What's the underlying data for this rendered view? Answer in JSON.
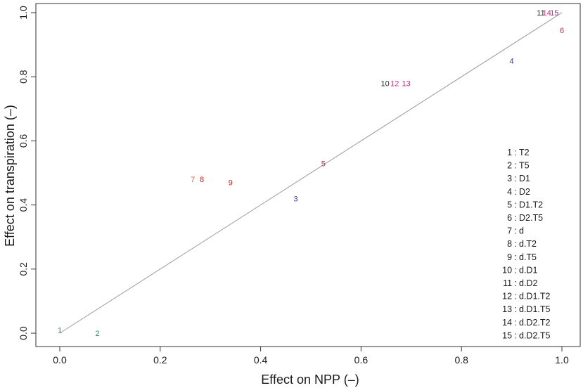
{
  "chart_data": {
    "type": "scatter",
    "title": "",
    "xlabel": "Effect on NPP (–)",
    "ylabel": "Effect on transpiration (–)",
    "xlim": [
      0.0,
      1.0
    ],
    "ylim": [
      0.0,
      1.0
    ],
    "x_ticks": [
      "0.0",
      "0.2",
      "0.4",
      "0.6",
      "0.8",
      "1.0"
    ],
    "y_ticks": [
      "0.0",
      "0.2",
      "0.4",
      "0.6",
      "0.8",
      "1.0"
    ],
    "grid": false,
    "reference_line": {
      "x": [
        0.0,
        1.0
      ],
      "y": [
        0.0,
        1.0
      ],
      "color": "#999999"
    },
    "points": [
      {
        "label": "1",
        "x": 0.0,
        "y": 0.01,
        "color": "#2e8b57"
      },
      {
        "label": "2",
        "x": 0.075,
        "y": 0.0,
        "color": "#2e8b57"
      },
      {
        "label": "3",
        "x": 0.47,
        "y": 0.42,
        "color": "#3b3b9c"
      },
      {
        "label": "4",
        "x": 0.9,
        "y": 0.85,
        "color": "#3b3b9c"
      },
      {
        "label": "5",
        "x": 0.525,
        "y": 0.53,
        "color": "#b03a3a"
      },
      {
        "label": "6",
        "x": 1.0,
        "y": 0.945,
        "color": "#b03a3a"
      },
      {
        "label": "7",
        "x": 0.265,
        "y": 0.48,
        "color": "#c8703a"
      },
      {
        "label": "8",
        "x": 0.283,
        "y": 0.48,
        "color": "#d02020"
      },
      {
        "label": "9",
        "x": 0.34,
        "y": 0.47,
        "color": "#d02020"
      },
      {
        "label": "10",
        "x": 0.648,
        "y": 0.78,
        "color": "#222222"
      },
      {
        "label": "11",
        "x": 0.958,
        "y": 1.0,
        "color": "#222222"
      },
      {
        "label": "12",
        "x": 0.667,
        "y": 0.78,
        "color": "#c2378a"
      },
      {
        "label": "13",
        "x": 0.69,
        "y": 0.78,
        "color": "#a0307c"
      },
      {
        "label": "14",
        "x": 0.97,
        "y": 1.0,
        "color": "#c2378a"
      },
      {
        "label": "15",
        "x": 0.985,
        "y": 1.0,
        "color": "#a0307c"
      }
    ],
    "legend": {
      "placement": "bottom-right",
      "entries": [
        {
          "num": "1",
          "text": "T2"
        },
        {
          "num": "2",
          "text": "T5"
        },
        {
          "num": "3",
          "text": "D1"
        },
        {
          "num": "4",
          "text": "D2"
        },
        {
          "num": "5",
          "text": "D1.T2"
        },
        {
          "num": "6",
          "text": "D2.T5"
        },
        {
          "num": "7",
          "text": "d"
        },
        {
          "num": "8",
          "text": "d.T2"
        },
        {
          "num": "9",
          "text": "d.T5"
        },
        {
          "num": "10",
          "text": "d.D1"
        },
        {
          "num": "11",
          "text": "d.D2"
        },
        {
          "num": "12",
          "text": "d.D1.T2"
        },
        {
          "num": "13",
          "text": "d.D1.T5"
        },
        {
          "num": "14",
          "text": "d.D2.T2"
        },
        {
          "num": "15",
          "text": "d.D2.T5"
        }
      ]
    }
  }
}
